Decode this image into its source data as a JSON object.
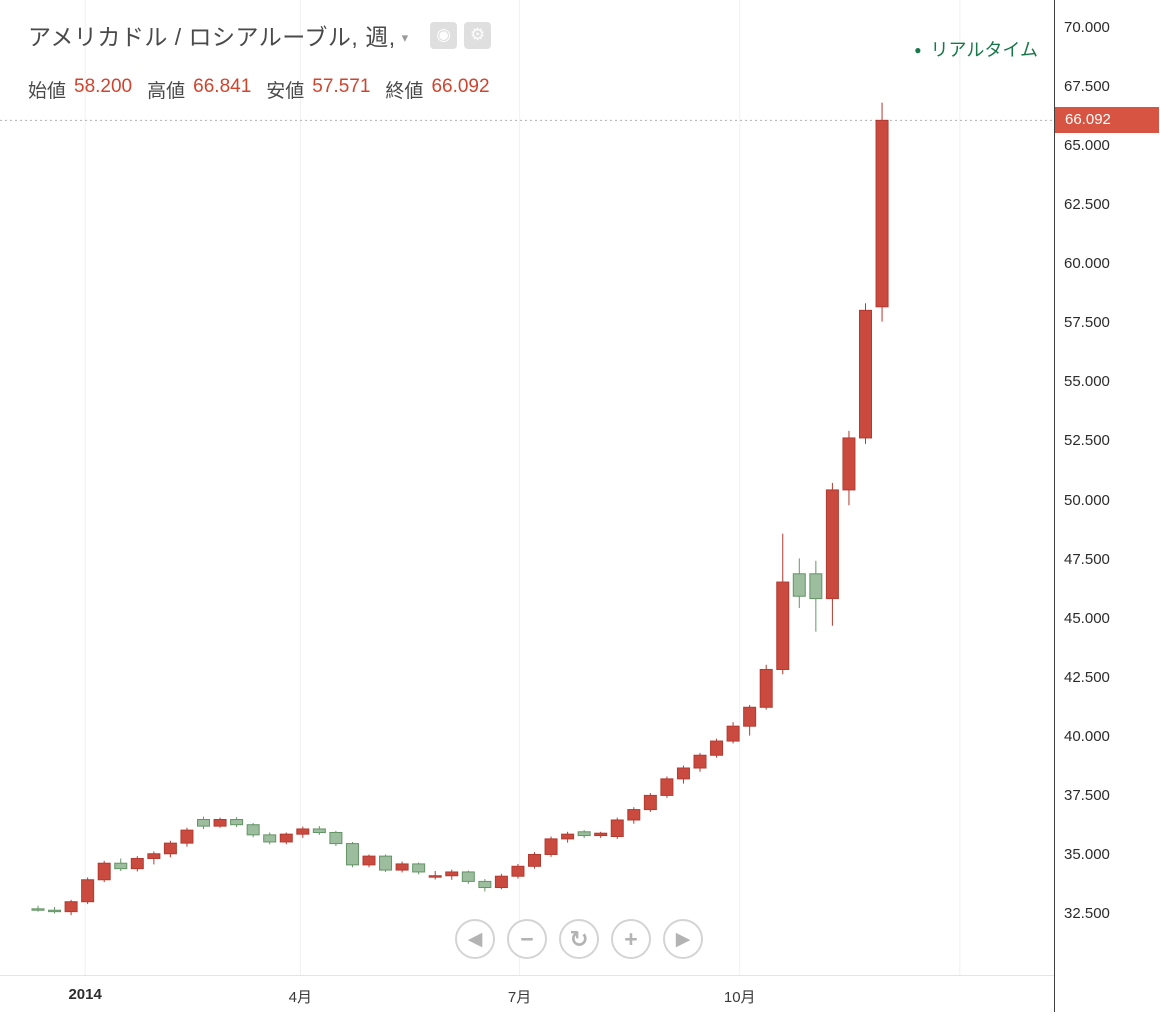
{
  "header": {
    "title": "アメリカドル / ロシアルーブル, 週,",
    "dropdown_caret": "▾",
    "eye_icon_glyph": "◉",
    "gear_icon_glyph": "⚙"
  },
  "ohlc": {
    "open_label": "始値",
    "open": "58.200",
    "high_label": "高値",
    "high": "66.841",
    "low_label": "安値",
    "low": "57.571",
    "close_label": "終値",
    "close": "66.092"
  },
  "status": {
    "dot": "●",
    "realtime_label": "リアルタイム"
  },
  "price_badge": {
    "value": "66.092"
  },
  "controls": {
    "pan_left": "◀",
    "zoom_out": "−",
    "reset": "↻",
    "zoom_in": "+",
    "pan_right": "▶"
  },
  "theme": {
    "accent_red": "#d0442e",
    "status_green": "#17794a",
    "badge_bg": "#d75442"
  },
  "chart_data": {
    "type": "candlestick",
    "symbol": "アメリカドル / ロシアルーブル",
    "interval": "週",
    "last_price": 66.092,
    "up_color": "#cb4a3f",
    "up_border": "#b23a30",
    "down_color": "#9cbd9e",
    "down_border": "#639465",
    "y_axis": {
      "max": 70.0,
      "min": 32.5,
      "step": 2.5,
      "decimals": 3
    },
    "x_ticks": [
      {
        "label": "2014",
        "index": 2.85,
        "bold": true
      },
      {
        "label": "4月",
        "index": 15.85
      },
      {
        "label": "7月",
        "index": 29.1
      },
      {
        "label": "10月",
        "index": 42.4
      },
      {
        "label": "",
        "index": 55.7
      }
    ],
    "candles": [
      [
        32.72,
        32.85,
        32.6,
        32.66
      ],
      [
        32.66,
        32.8,
        32.52,
        32.6
      ],
      [
        32.6,
        33.1,
        32.45,
        33.02
      ],
      [
        33.02,
        34.05,
        32.92,
        33.95
      ],
      [
        33.95,
        34.75,
        33.85,
        34.65
      ],
      [
        34.65,
        34.85,
        34.32,
        34.42
      ],
      [
        34.42,
        34.95,
        34.3,
        34.85
      ],
      [
        34.85,
        35.15,
        34.6,
        35.05
      ],
      [
        35.05,
        35.6,
        34.9,
        35.5
      ],
      [
        35.5,
        36.15,
        35.35,
        36.05
      ],
      [
        36.5,
        36.62,
        36.1,
        36.22
      ],
      [
        36.22,
        36.58,
        36.15,
        36.5
      ],
      [
        36.5,
        36.6,
        36.18,
        36.28
      ],
      [
        36.28,
        36.35,
        35.75,
        35.85
      ],
      [
        35.85,
        35.95,
        35.45,
        35.55
      ],
      [
        35.55,
        35.95,
        35.45,
        35.88
      ],
      [
        35.88,
        36.2,
        35.72,
        36.1
      ],
      [
        36.1,
        36.22,
        35.85,
        35.95
      ],
      [
        35.95,
        36.02,
        35.38,
        35.48
      ],
      [
        35.48,
        35.55,
        34.48,
        34.58
      ],
      [
        34.58,
        35.02,
        34.48,
        34.95
      ],
      [
        34.95,
        35.02,
        34.28,
        34.36
      ],
      [
        34.36,
        34.72,
        34.26,
        34.62
      ],
      [
        34.62,
        34.68,
        34.18,
        34.28
      ],
      [
        34.06,
        34.32,
        33.96,
        34.12
      ],
      [
        34.12,
        34.38,
        33.95,
        34.28
      ],
      [
        34.28,
        34.34,
        33.78,
        33.88
      ],
      [
        33.88,
        33.98,
        33.45,
        33.62
      ],
      [
        33.62,
        34.2,
        33.55,
        34.1
      ],
      [
        34.1,
        34.62,
        34.0,
        34.52
      ],
      [
        34.52,
        35.12,
        34.42,
        35.02
      ],
      [
        35.02,
        35.78,
        34.92,
        35.68
      ],
      [
        35.68,
        35.98,
        35.52,
        35.88
      ],
      [
        35.98,
        36.05,
        35.72,
        35.82
      ],
      [
        35.82,
        35.98,
        35.72,
        35.92
      ],
      [
        35.78,
        36.58,
        35.68,
        36.48
      ],
      [
        36.48,
        37.02,
        36.32,
        36.92
      ],
      [
        36.92,
        37.62,
        36.82,
        37.52
      ],
      [
        37.52,
        38.32,
        37.42,
        38.22
      ],
      [
        38.22,
        38.78,
        38.02,
        38.68
      ],
      [
        38.68,
        39.32,
        38.52,
        39.22
      ],
      [
        39.22,
        39.92,
        39.12,
        39.82
      ],
      [
        39.82,
        40.62,
        39.72,
        40.45
      ],
      [
        40.45,
        41.35,
        40.05,
        41.25
      ],
      [
        41.25,
        43.05,
        41.15,
        42.85
      ],
      [
        42.85,
        48.6,
        42.65,
        46.55
      ],
      [
        46.9,
        47.55,
        45.45,
        45.95
      ],
      [
        46.9,
        47.45,
        44.45,
        45.85
      ],
      [
        45.85,
        50.75,
        44.7,
        50.45
      ],
      [
        50.45,
        52.95,
        49.8,
        52.65
      ],
      [
        52.65,
        58.35,
        52.4,
        58.05
      ],
      [
        58.2,
        66.841,
        57.571,
        66.092
      ]
    ]
  }
}
